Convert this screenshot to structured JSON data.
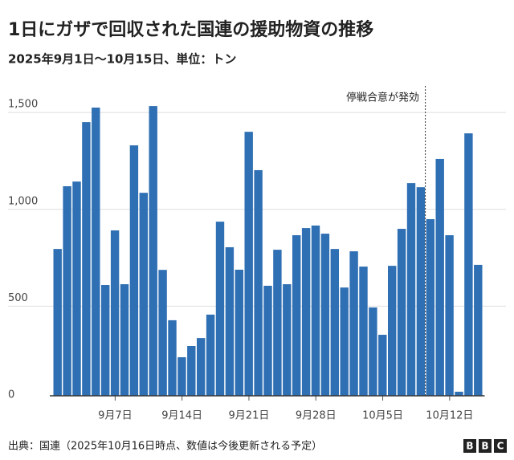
{
  "chart_data": {
    "type": "bar",
    "title": "1日にガザで回収された国連の援助物資の推移",
    "subtitle": "2025年9月1日～10月15日、単位：トン",
    "annotation": "停戦合意が発効",
    "source": "出典：国連（2025年10月16日時点、数値は今後更新される予定）",
    "logo": [
      "B",
      "B",
      "C"
    ],
    "categories": [
      null,
      null,
      null,
      null,
      null,
      null,
      "9月7日",
      null,
      null,
      null,
      null,
      null,
      null,
      "9月14日",
      null,
      null,
      null,
      null,
      null,
      null,
      "9月21日",
      null,
      null,
      null,
      null,
      null,
      null,
      "9月28日",
      null,
      null,
      null,
      null,
      null,
      null,
      "10月5日",
      null,
      null,
      null,
      null,
      null,
      null,
      "10月12日",
      null,
      null,
      null
    ],
    "values": [
      758,
      1082,
      1106,
      1413,
      1488,
      572,
      854,
      576,
      1293,
      1048,
      1496,
      650,
      390,
      199,
      257,
      298,
      419,
      899,
      767,
      651,
      1363,
      1165,
      568,
      754,
      576,
      829,
      866,
      879,
      837,
      758,
      559,
      746,
      667,
      456,
      315,
      671,
      862,
      1098,
      1077,
      912,
      1223,
      829,
      21,
      1355,
      676
    ],
    "color": "#2f6fb3",
    "ylim": [
      0,
      1600
    ],
    "yticks": [
      0,
      500,
      {
        "value": 1000,
        "label": "1,000"
      },
      {
        "value": 1500,
        "label": "1,500"
      }
    ],
    "grid": true
  }
}
